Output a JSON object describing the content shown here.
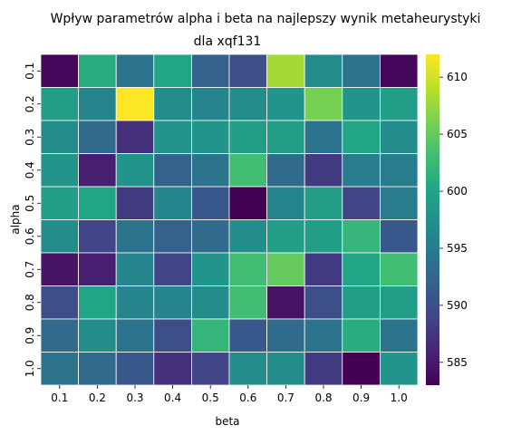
{
  "chart_data": {
    "type": "heatmap",
    "title": "Wpływ parametrów alpha i beta na najlepszy wynik metaheurystyki",
    "subtitle": "dla xqf131",
    "xlabel": "beta",
    "ylabel": "alpha",
    "x_categories": [
      "0.1",
      "0.2",
      "0.3",
      "0.4",
      "0.5",
      "0.6",
      "0.7",
      "0.8",
      "0.9",
      "1.0"
    ],
    "y_categories": [
      "0.1",
      "0.2",
      "0.3",
      "0.4",
      "0.5",
      "0.6",
      "0.7",
      "0.8",
      "0.9",
      "1.0"
    ],
    "values": [
      [
        583.5,
        601,
        594,
        600,
        592,
        590,
        608,
        597,
        594,
        583.5
      ],
      [
        599,
        596,
        612,
        597,
        596,
        597,
        598,
        606,
        598,
        599
      ],
      [
        597,
        593,
        587,
        598,
        598,
        599,
        599,
        594,
        600,
        597
      ],
      [
        598,
        585.5,
        598,
        592,
        594,
        603,
        593,
        588,
        595,
        595
      ],
      [
        599,
        600,
        588,
        596,
        591,
        583,
        596,
        599,
        589,
        595
      ],
      [
        597,
        589,
        594,
        592,
        593,
        597,
        599,
        599,
        602,
        591
      ],
      [
        584.5,
        585.5,
        596,
        589,
        598,
        603,
        605,
        588,
        600,
        603
      ],
      [
        590,
        600,
        596,
        596,
        597,
        603,
        584.5,
        590,
        599,
        599
      ],
      [
        593,
        597,
        594,
        590,
        602,
        591,
        593,
        594,
        601,
        594
      ],
      [
        594,
        593,
        591,
        587,
        589,
        597,
        597,
        588,
        583,
        598
      ]
    ],
    "colorbar": {
      "colormap": "viridis",
      "vmin": 583,
      "vmax": 612,
      "ticks": [
        "585",
        "590",
        "595",
        "600",
        "605",
        "610"
      ]
    },
    "grid": false,
    "cell_borders": true
  }
}
